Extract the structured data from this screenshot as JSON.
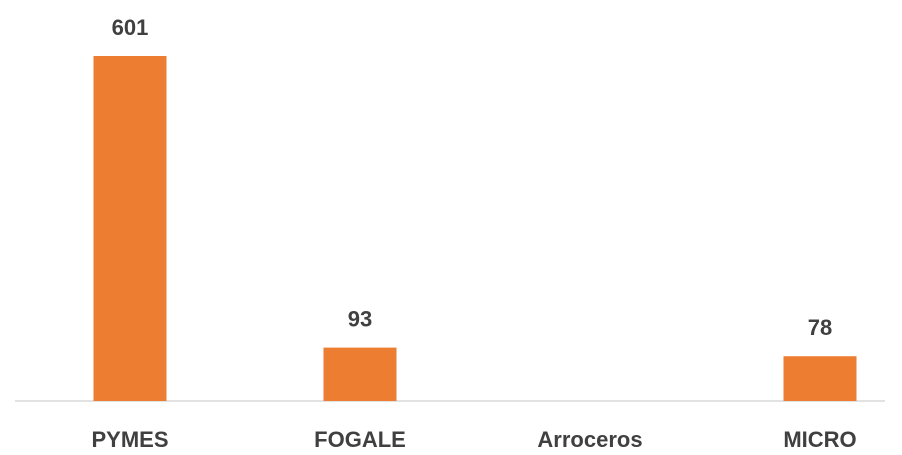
{
  "chart_data": {
    "type": "bar",
    "categories": [
      "PYMES",
      "FOGALE",
      "Arroceros",
      "MICRO"
    ],
    "values": [
      601,
      93,
      null,
      78
    ],
    "color": "#ed7d31"
  }
}
